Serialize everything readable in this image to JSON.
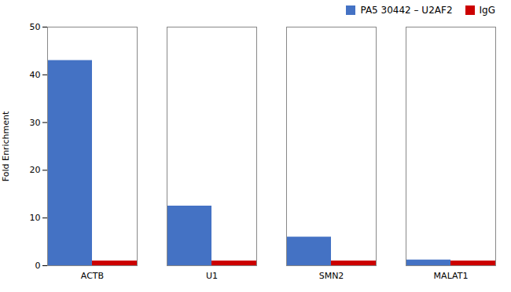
{
  "chart_data": {
    "type": "bar",
    "ylabel": "Fold Enrichment",
    "categories": [
      "ACTB",
      "U1",
      "SMN2",
      "MALAT1"
    ],
    "series": [
      {
        "name": "PA5 30442 – U2AF2",
        "color": "#4472C4",
        "values": [
          43,
          12.5,
          6,
          1.2
        ]
      },
      {
        "name": "IgG",
        "color": "#CC0000",
        "values": [
          1,
          1,
          1,
          1
        ]
      }
    ],
    "ylim": [
      0,
      50
    ],
    "yticks": [
      0,
      10,
      20,
      30,
      40,
      50
    ],
    "legend": "upper right"
  }
}
